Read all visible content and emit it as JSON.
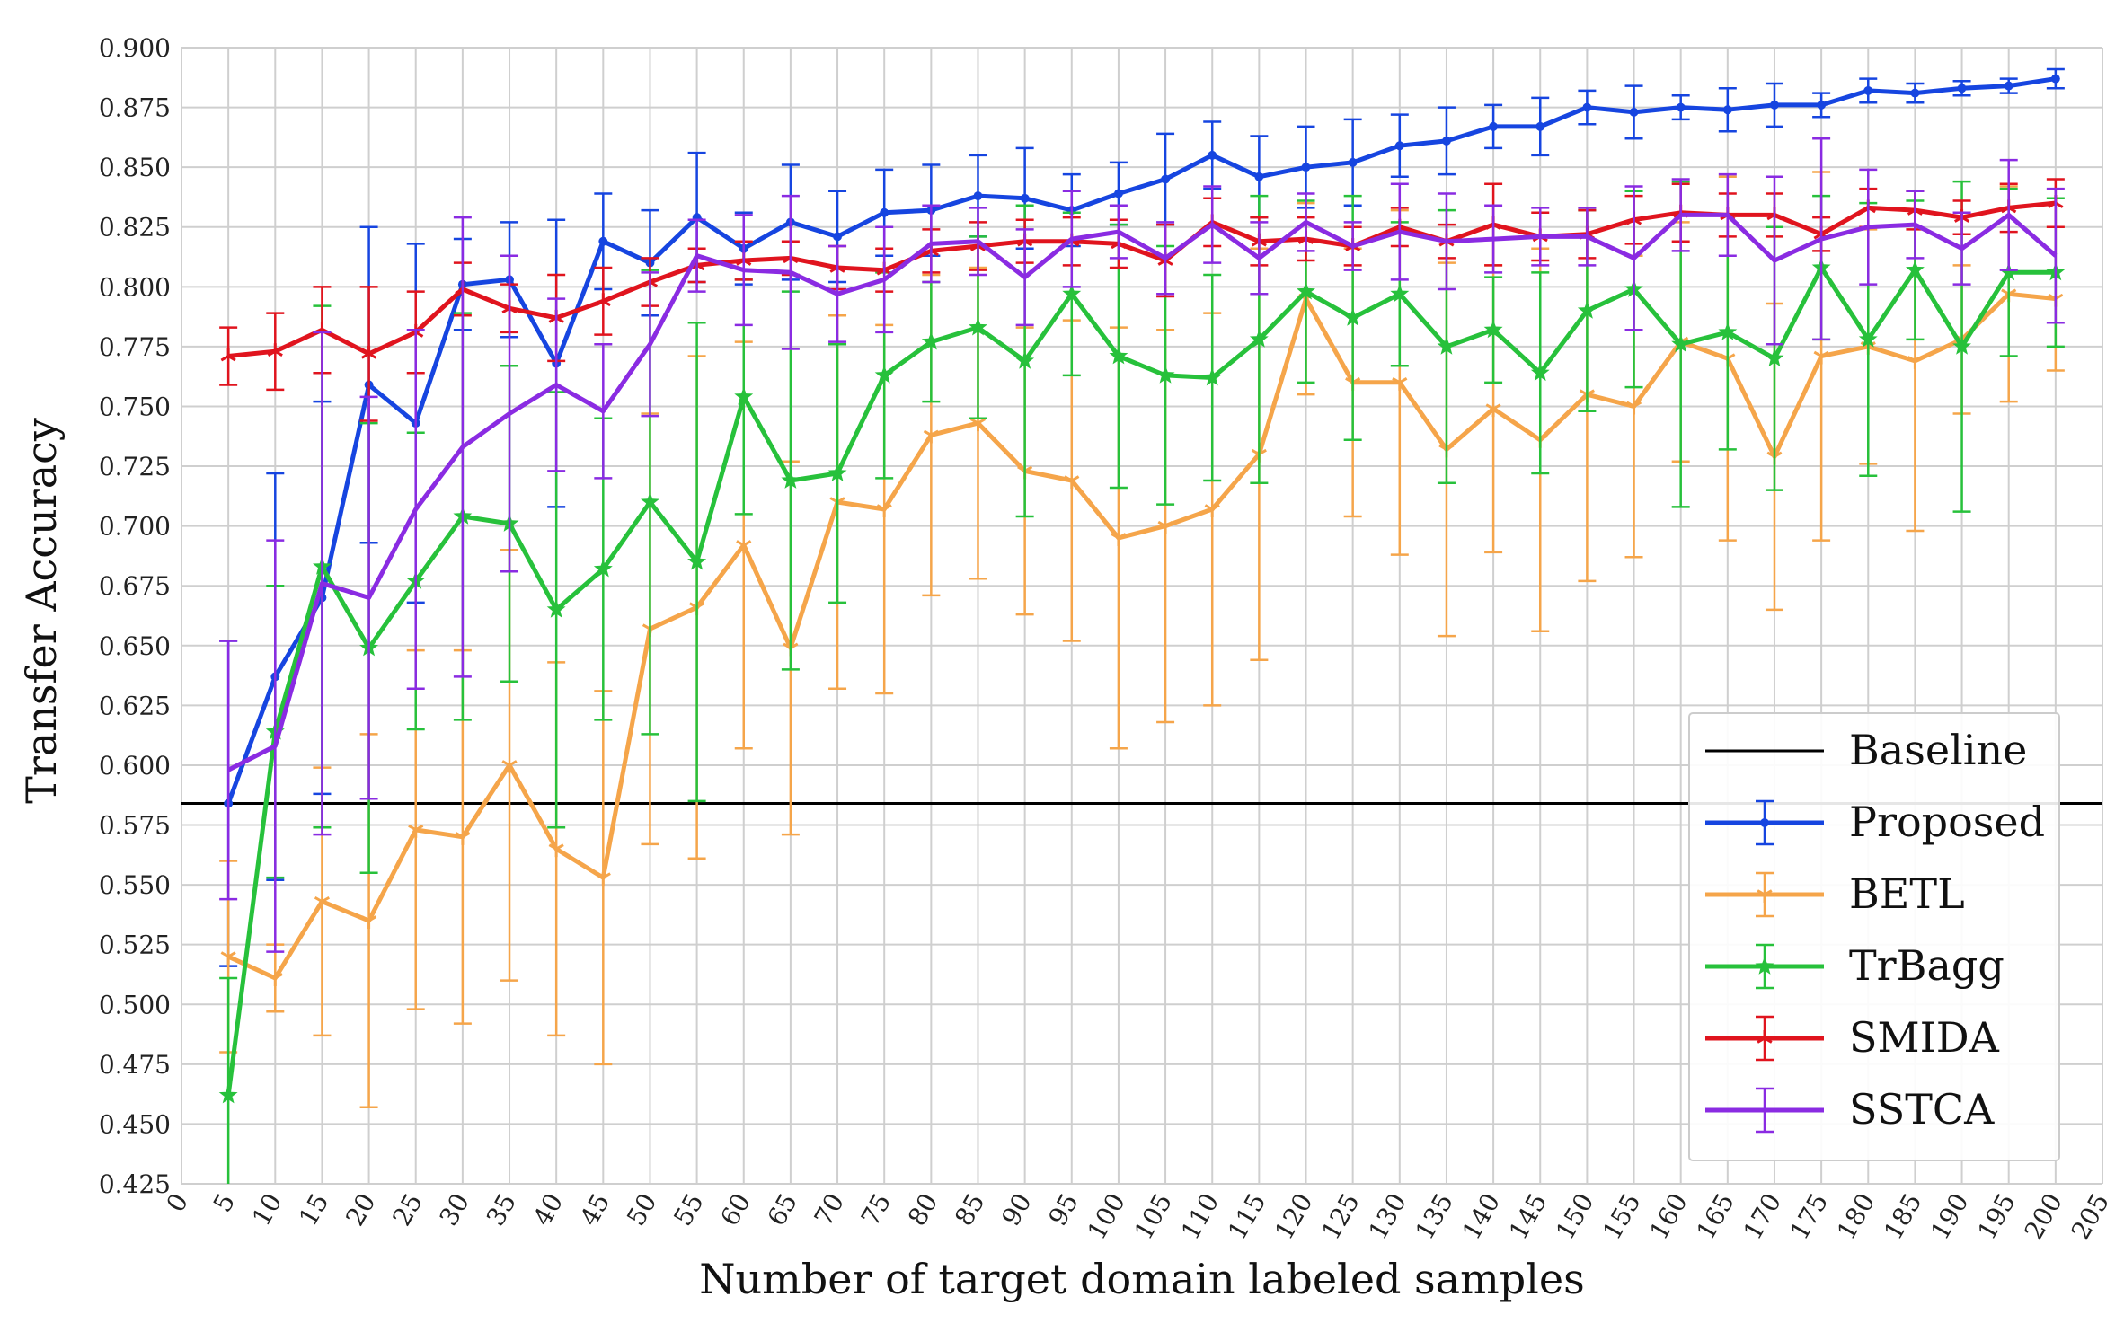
{
  "chart_data": {
    "type": "line",
    "title": "",
    "xlabel": "Number of target domain labeled samples",
    "ylabel": "Transfer Accuracy",
    "xlim": [
      0,
      205
    ],
    "ylim": [
      0.425,
      0.9
    ],
    "xticks": [
      0,
      5,
      10,
      15,
      20,
      25,
      30,
      35,
      40,
      45,
      50,
      55,
      60,
      65,
      70,
      75,
      80,
      85,
      90,
      95,
      100,
      105,
      110,
      115,
      120,
      125,
      130,
      135,
      140,
      145,
      150,
      155,
      160,
      165,
      170,
      175,
      180,
      185,
      190,
      195,
      200,
      205
    ],
    "yticks": [
      0.425,
      0.45,
      0.475,
      0.5,
      0.525,
      0.55,
      0.575,
      0.6,
      0.625,
      0.65,
      0.675,
      0.7,
      0.725,
      0.75,
      0.775,
      0.8,
      0.825,
      0.85,
      0.875,
      0.9
    ],
    "grid": true,
    "legend_position": "lower right",
    "x": [
      5,
      10,
      15,
      20,
      25,
      30,
      35,
      40,
      45,
      50,
      55,
      60,
      65,
      70,
      75,
      80,
      85,
      90,
      95,
      100,
      105,
      110,
      115,
      120,
      125,
      130,
      135,
      140,
      145,
      150,
      155,
      160,
      165,
      170,
      175,
      180,
      185,
      190,
      195,
      200
    ],
    "baseline": {
      "name": "Baseline",
      "value": 0.584,
      "color": "#000000"
    },
    "series": [
      {
        "name": "Proposed",
        "color": "#1645e0",
        "marker": "circle",
        "values": [
          0.584,
          0.637,
          0.67,
          0.759,
          0.743,
          0.801,
          0.803,
          0.768,
          0.819,
          0.81,
          0.829,
          0.816,
          0.827,
          0.821,
          0.831,
          0.832,
          0.838,
          0.837,
          0.832,
          0.839,
          0.845,
          0.855,
          0.846,
          0.85,
          0.852,
          0.859,
          0.861,
          0.867,
          0.867,
          0.875,
          0.873,
          0.875,
          0.874,
          0.876,
          0.876,
          0.882,
          0.881,
          0.883,
          0.884,
          0.887
        ],
        "errors": [
          0.068,
          0.085,
          0.082,
          0.066,
          0.075,
          0.019,
          0.024,
          0.06,
          0.02,
          0.022,
          0.027,
          0.015,
          0.024,
          0.019,
          0.018,
          0.019,
          0.017,
          0.021,
          0.015,
          0.013,
          0.019,
          0.014,
          0.017,
          0.017,
          0.018,
          0.013,
          0.014,
          0.009,
          0.012,
          0.007,
          0.011,
          0.005,
          0.009,
          0.009,
          0.005,
          0.005,
          0.004,
          0.003,
          0.003,
          0.004
        ]
      },
      {
        "name": "BETL",
        "color": "#f5a54a",
        "marker": "tri_down",
        "values": [
          0.52,
          0.511,
          0.543,
          0.535,
          0.573,
          0.57,
          0.6,
          0.565,
          0.553,
          0.657,
          0.666,
          0.692,
          0.649,
          0.71,
          0.707,
          0.738,
          0.743,
          0.723,
          0.719,
          0.695,
          0.7,
          0.707,
          0.73,
          0.795,
          0.76,
          0.76,
          0.732,
          0.749,
          0.736,
          0.755,
          0.75,
          0.777,
          0.77,
          0.729,
          0.771,
          0.775,
          0.769,
          0.778,
          0.797,
          0.795
        ],
        "errors": [
          0.04,
          0.014,
          0.056,
          0.078,
          0.075,
          0.078,
          0.09,
          0.078,
          0.078,
          0.09,
          0.105,
          0.085,
          0.078,
          0.078,
          0.077,
          0.067,
          0.065,
          0.06,
          0.067,
          0.088,
          0.082,
          0.082,
          0.086,
          0.04,
          0.056,
          0.072,
          0.078,
          0.06,
          0.08,
          0.078,
          0.063,
          0.05,
          0.076,
          0.064,
          0.077,
          0.049,
          0.071,
          0.031,
          0.045,
          0.03
        ]
      },
      {
        "name": "TrBagg",
        "color": "#27c13b",
        "marker": "star",
        "values": [
          0.462,
          0.614,
          0.683,
          0.649,
          0.677,
          0.704,
          0.701,
          0.665,
          0.682,
          0.71,
          0.685,
          0.754,
          0.719,
          0.722,
          0.763,
          0.777,
          0.783,
          0.769,
          0.797,
          0.771,
          0.763,
          0.762,
          0.778,
          0.798,
          0.787,
          0.797,
          0.775,
          0.782,
          0.764,
          0.79,
          0.799,
          0.776,
          0.781,
          0.77,
          0.808,
          0.778,
          0.807,
          0.775,
          0.806,
          0.806
        ],
        "errors": [
          0.049,
          0.061,
          0.109,
          0.094,
          0.062,
          0.085,
          0.066,
          0.091,
          0.063,
          0.097,
          0.1,
          0.049,
          0.079,
          0.054,
          0.043,
          0.025,
          0.038,
          0.065,
          0.034,
          0.055,
          0.054,
          0.043,
          0.06,
          0.038,
          0.051,
          0.03,
          0.057,
          0.022,
          0.042,
          0.042,
          0.041,
          0.068,
          0.049,
          0.055,
          0.03,
          0.057,
          0.029,
          0.069,
          0.035,
          0.031
        ]
      },
      {
        "name": "SMIDA",
        "color": "#e0141e",
        "marker": "tri_up",
        "values": [
          0.771,
          0.773,
          0.782,
          0.772,
          0.781,
          0.799,
          0.791,
          0.787,
          0.794,
          0.802,
          0.809,
          0.811,
          0.812,
          0.808,
          0.807,
          0.815,
          0.817,
          0.819,
          0.819,
          0.818,
          0.811,
          0.827,
          0.819,
          0.82,
          0.817,
          0.825,
          0.819,
          0.826,
          0.821,
          0.822,
          0.828,
          0.831,
          0.83,
          0.83,
          0.822,
          0.833,
          0.832,
          0.829,
          0.833,
          0.835
        ],
        "errors": [
          0.012,
          0.016,
          0.018,
          0.028,
          0.017,
          0.011,
          0.01,
          0.018,
          0.014,
          0.01,
          0.007,
          0.008,
          0.007,
          0.009,
          0.009,
          0.009,
          0.01,
          0.009,
          0.01,
          0.01,
          0.015,
          0.01,
          0.01,
          0.009,
          0.008,
          0.008,
          0.007,
          0.017,
          0.01,
          0.01,
          0.01,
          0.012,
          0.009,
          0.009,
          0.007,
          0.008,
          0.008,
          0.007,
          0.01,
          0.01
        ]
      },
      {
        "name": "SSTCA",
        "color": "#8a2be2",
        "marker": "none",
        "values": [
          0.598,
          0.608,
          0.676,
          0.67,
          0.707,
          0.733,
          0.747,
          0.759,
          0.748,
          0.776,
          0.813,
          0.807,
          0.806,
          0.797,
          0.803,
          0.818,
          0.819,
          0.804,
          0.82,
          0.823,
          0.812,
          0.826,
          0.812,
          0.827,
          0.817,
          0.823,
          0.819,
          0.82,
          0.821,
          0.821,
          0.812,
          0.83,
          0.83,
          0.811,
          0.82,
          0.825,
          0.826,
          0.816,
          0.83,
          0.813
        ],
        "errors": [
          0.054,
          0.086,
          0.105,
          0.084,
          0.075,
          0.096,
          0.066,
          0.036,
          0.028,
          0.03,
          0.015,
          0.023,
          0.032,
          0.02,
          0.022,
          0.016,
          0.014,
          0.02,
          0.02,
          0.011,
          0.015,
          0.016,
          0.015,
          0.012,
          0.01,
          0.02,
          0.02,
          0.014,
          0.012,
          0.012,
          0.03,
          0.015,
          0.017,
          0.035,
          0.042,
          0.024,
          0.014,
          0.015,
          0.023,
          0.028
        ]
      }
    ]
  },
  "legend": {
    "items": [
      {
        "label": "Baseline",
        "color": "#000000",
        "errorbar": false,
        "marker": "none"
      },
      {
        "label": "Proposed",
        "color": "#1645e0",
        "errorbar": true,
        "marker": "circle"
      },
      {
        "label": "BETL",
        "color": "#f5a54a",
        "errorbar": true,
        "marker": "tri_down"
      },
      {
        "label": "TrBagg",
        "color": "#27c13b",
        "errorbar": true,
        "marker": "star"
      },
      {
        "label": "SMIDA",
        "color": "#e0141e",
        "errorbar": true,
        "marker": "tri_up"
      },
      {
        "label": "SSTCA",
        "color": "#8a2be2",
        "errorbar": true,
        "marker": "none"
      }
    ]
  }
}
